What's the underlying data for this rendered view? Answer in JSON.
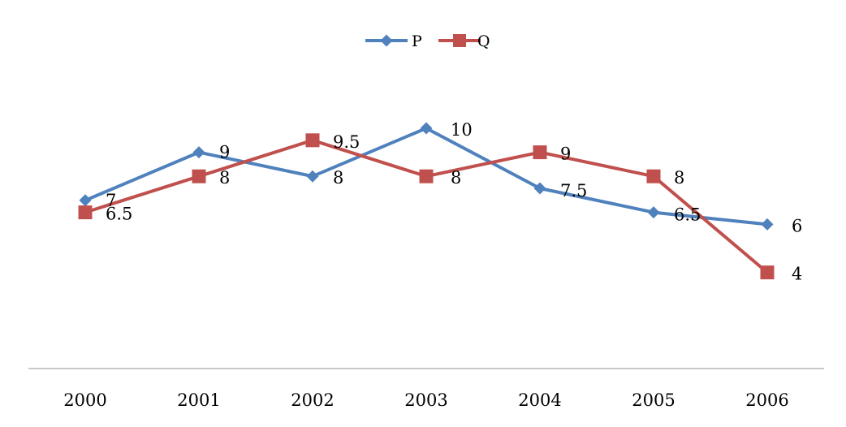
{
  "chart_data": {
    "type": "line",
    "title": "",
    "xlabel": "",
    "ylabel": "",
    "categories": [
      "2000",
      "2001",
      "2002",
      "2003",
      "2004",
      "2005",
      "2006"
    ],
    "ylim": [
      0,
      12
    ],
    "grid": false,
    "legend_position": "top",
    "series": [
      {
        "name": "P",
        "values": [
          7,
          9,
          8,
          10,
          7.5,
          6.5,
          6
        ],
        "labels": [
          "7",
          "9",
          "8",
          "10",
          "7.5",
          "6.5",
          "6"
        ],
        "color": "#4F81BD",
        "marker": "diamond"
      },
      {
        "name": "Q",
        "values": [
          6.5,
          8,
          9.5,
          8,
          9,
          8,
          4
        ],
        "labels": [
          "6.5",
          "8",
          "9.5",
          "8",
          "9",
          "8",
          "4"
        ],
        "color": "#C0504D",
        "marker": "square"
      }
    ],
    "axis_color": "#A6A6A6"
  }
}
